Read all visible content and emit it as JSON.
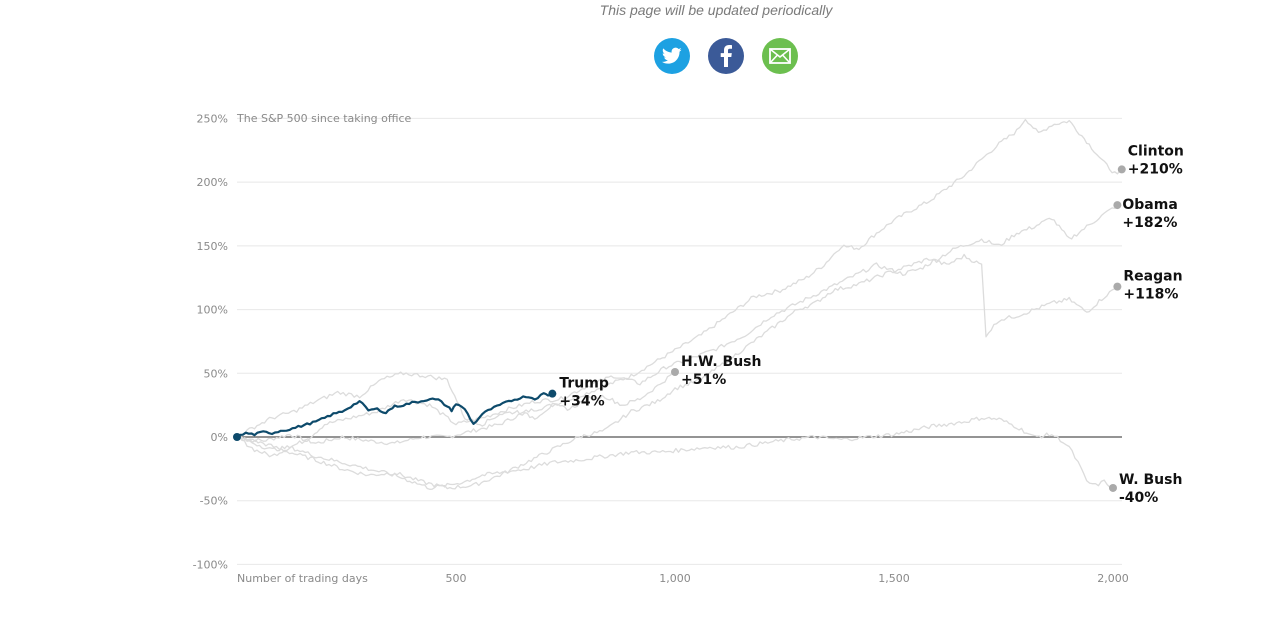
{
  "header": {
    "note": "This page will be updated periodically",
    "share": [
      {
        "name": "twitter-share-button",
        "icon": "twitter-icon",
        "color": "#1da1e2"
      },
      {
        "name": "facebook-share-button",
        "icon": "facebook-icon",
        "color": "#3b5a98"
      },
      {
        "name": "email-share-button",
        "icon": "email-icon",
        "color": "#6cbf4f"
      }
    ]
  },
  "chart_data": {
    "type": "line",
    "title": "The S&P 500 since taking office",
    "xlabel": "Number of trading days",
    "ylabel": "",
    "xlim": [
      0,
      2000
    ],
    "ylim": [
      -100,
      250
    ],
    "grid": true,
    "x_ticks": [
      {
        "value": 500,
        "label": "500"
      },
      {
        "value": 1000,
        "label": "1,000"
      },
      {
        "value": 1500,
        "label": "1,500"
      },
      {
        "value": 2000,
        "label": "2,000"
      }
    ],
    "y_ticks": [
      {
        "value": 250,
        "label": "250%"
      },
      {
        "value": 200,
        "label": "200%"
      },
      {
        "value": 150,
        "label": "150%"
      },
      {
        "value": 100,
        "label": "100%"
      },
      {
        "value": 50,
        "label": "50%"
      },
      {
        "value": 0,
        "label": "0%"
      },
      {
        "value": -50,
        "label": "-50%"
      },
      {
        "value": -100,
        "label": "-100%"
      }
    ],
    "highlight_color": "#0d4a6b",
    "muted_color": "#dcdcdc",
    "series": [
      {
        "name": "Clinton",
        "label": "+210%",
        "highlight": false,
        "x": [
          0,
          60,
          120,
          180,
          240,
          300,
          360,
          420,
          480,
          540,
          600,
          660,
          720,
          780,
          840,
          900,
          960,
          1000,
          1060,
          1120,
          1180,
          1240,
          1300,
          1340,
          1380,
          1420,
          1460,
          1500,
          1540,
          1580,
          1620,
          1660,
          1700,
          1740,
          1780,
          1800,
          1830,
          1860,
          1900,
          1940,
          1980,
          2010,
          2020
        ],
        "y": [
          0,
          -3,
          2,
          -5,
          0,
          -3,
          -5,
          0,
          0,
          5,
          10,
          20,
          25,
          32,
          40,
          48,
          60,
          68,
          80,
          95,
          110,
          115,
          125,
          135,
          150,
          148,
          160,
          170,
          178,
          185,
          195,
          205,
          218,
          230,
          240,
          250,
          238,
          245,
          248,
          232,
          215,
          205,
          210
        ]
      },
      {
        "name": "Obama",
        "label": "+182%",
        "highlight": false,
        "x": [
          0,
          40,
          80,
          120,
          160,
          200,
          260,
          320,
          380,
          440,
          500,
          560,
          620,
          680,
          740,
          800,
          860,
          920,
          980,
          1040,
          1100,
          1160,
          1220,
          1280,
          1340,
          1400,
          1460,
          1520,
          1560,
          1600,
          1640,
          1700,
          1740,
          1780,
          1820,
          1860,
          1900,
          1940,
          1980,
          2010
        ],
        "y": [
          0,
          -10,
          -15,
          -8,
          -2,
          10,
          15,
          20,
          30,
          25,
          10,
          15,
          22,
          28,
          30,
          40,
          48,
          42,
          55,
          62,
          70,
          80,
          95,
          105,
          115,
          125,
          135,
          128,
          132,
          140,
          148,
          155,
          150,
          160,
          165,
          172,
          155,
          165,
          175,
          182
        ]
      },
      {
        "name": "Reagan",
        "label": "+118%",
        "highlight": false,
        "x": [
          0,
          60,
          120,
          180,
          240,
          300,
          360,
          420,
          480,
          540,
          600,
          660,
          720,
          780,
          840,
          900,
          960,
          1000,
          1060,
          1120,
          1180,
          1240,
          1280,
          1320,
          1360,
          1420,
          1480,
          1540,
          1580,
          1620,
          1660,
          1700,
          1710,
          1740,
          1780,
          1820,
          1860,
          1900,
          1940,
          1980,
          2010
        ],
        "y": [
          0,
          -5,
          -12,
          -18,
          -25,
          -30,
          -28,
          -35,
          -40,
          -38,
          -30,
          -20,
          -10,
          0,
          5,
          20,
          28,
          38,
          45,
          60,
          75,
          90,
          100,
          105,
          115,
          120,
          128,
          135,
          140,
          135,
          142,
          135,
          80,
          92,
          95,
          100,
          105,
          108,
          98,
          110,
          118
        ]
      },
      {
        "name": "H.W. Bush",
        "label": "+51%",
        "highlight": false,
        "x": [
          0,
          40,
          80,
          130,
          180,
          230,
          280,
          330,
          380,
          430,
          480,
          520,
          560,
          600,
          640,
          680,
          720,
          760,
          800,
          840,
          880,
          920,
          960,
          1000
        ],
        "y": [
          0,
          8,
          15,
          20,
          28,
          35,
          32,
          45,
          50,
          48,
          45,
          15,
          10,
          18,
          20,
          15,
          25,
          22,
          30,
          32,
          25,
          30,
          40,
          51
        ]
      },
      {
        "name": "W. Bush",
        "label": "-40%",
        "highlight": false,
        "x": [
          0,
          40,
          80,
          120,
          180,
          240,
          300,
          360,
          400,
          440,
          480,
          520,
          560,
          600,
          660,
          720,
          780,
          840,
          900,
          960,
          1020,
          1080,
          1140,
          1200,
          1260,
          1320,
          1380,
          1440,
          1500,
          1540,
          1580,
          1620,
          1660,
          1700,
          1740,
          1780,
          1820,
          1860,
          1880,
          1900,
          1920,
          1940,
          1960,
          1980,
          2000
        ],
        "y": [
          0,
          -5,
          -10,
          -8,
          -15,
          -20,
          -25,
          -30,
          -35,
          -40,
          -38,
          -35,
          -30,
          -28,
          -25,
          -20,
          -18,
          -15,
          -12,
          -12,
          -10,
          -8,
          -8,
          -5,
          -2,
          0,
          -2,
          0,
          2,
          5,
          8,
          10,
          12,
          15,
          14,
          8,
          0,
          2,
          -2,
          -8,
          -20,
          -35,
          -38,
          -35,
          -40
        ]
      },
      {
        "name": "Trump",
        "label": "+34%",
        "highlight": true,
        "x": [
          0,
          20,
          40,
          60,
          80,
          100,
          120,
          140,
          160,
          180,
          200,
          220,
          240,
          260,
          280,
          300,
          320,
          340,
          350,
          360,
          380,
          400,
          420,
          440,
          460,
          480,
          490,
          500,
          520,
          540,
          560,
          580,
          600,
          620,
          640,
          660,
          680,
          700,
          710,
          720
        ],
        "y": [
          0,
          3,
          2,
          4,
          3,
          5,
          6,
          8,
          10,
          12,
          15,
          18,
          20,
          24,
          28,
          21,
          22,
          19,
          22,
          24,
          25,
          27,
          28,
          30,
          29,
          24,
          21,
          26,
          22,
          10,
          18,
          22,
          25,
          28,
          30,
          32,
          30,
          34,
          33,
          34
        ]
      }
    ]
  }
}
